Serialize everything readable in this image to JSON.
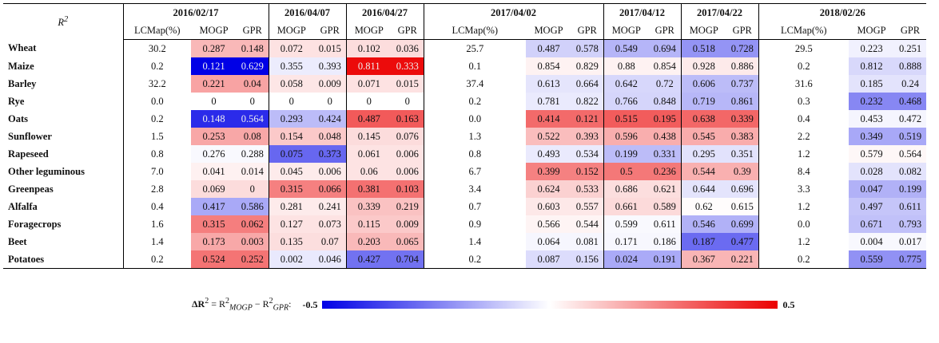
{
  "corner": {
    "base": "R",
    "sup": "2"
  },
  "groups": [
    {
      "date": "2016/02/17",
      "columns": [
        "LCMap(%)",
        "MOGP",
        "GPR"
      ]
    },
    {
      "date": "2016/04/07",
      "columns": [
        "MOGP",
        "GPR"
      ]
    },
    {
      "date": "2016/04/27",
      "columns": [
        "MOGP",
        "GPR"
      ]
    },
    {
      "date": "2017/04/02",
      "columns": [
        "LCMap(%)",
        "MOGP",
        "GPR"
      ]
    },
    {
      "date": "2017/04/12",
      "columns": [
        "MOGP",
        "GPR"
      ]
    },
    {
      "date": "2017/04/22",
      "columns": [
        "MOGP",
        "GPR"
      ]
    },
    {
      "date": "2018/02/26",
      "columns": [
        "LCMap(%)",
        "MOGP",
        "GPR"
      ]
    }
  ],
  "rows": [
    {
      "label": "Wheat",
      "cells": [
        "30.2",
        "0.287",
        "0.148",
        "0.072",
        "0.015",
        "0.102",
        "0.036",
        "25.7",
        "0.487",
        "0.578",
        "0.549",
        "0.694",
        "0.518",
        "0.728",
        "29.5",
        "0.223",
        "0.251"
      ]
    },
    {
      "label": "Maize",
      "cells": [
        "0.2",
        "0.121",
        "0.629",
        "0.355",
        "0.393",
        "0.811",
        "0.333",
        "0.1",
        "0.854",
        "0.829",
        "0.88",
        "0.854",
        "0.928",
        "0.886",
        "0.2",
        "0.812",
        "0.888"
      ]
    },
    {
      "label": "Barley",
      "cells": [
        "32.2",
        "0.221",
        "0.04",
        "0.058",
        "0.009",
        "0.071",
        "0.015",
        "37.4",
        "0.613",
        "0.664",
        "0.642",
        "0.72",
        "0.606",
        "0.737",
        "31.6",
        "0.185",
        "0.24"
      ]
    },
    {
      "label": "Rye",
      "cells": [
        "0.0",
        "0",
        "0",
        "0",
        "0",
        "0",
        "0",
        "0.2",
        "0.781",
        "0.822",
        "0.766",
        "0.848",
        "0.719",
        "0.861",
        "0.3",
        "0.232",
        "0.468"
      ]
    },
    {
      "label": "Oats",
      "cells": [
        "0.2",
        "0.148",
        "0.564",
        "0.293",
        "0.424",
        "0.487",
        "0.163",
        "0.0",
        "0.414",
        "0.121",
        "0.515",
        "0.195",
        "0.638",
        "0.339",
        "0.4",
        "0.453",
        "0.472"
      ]
    },
    {
      "label": "Sunflower",
      "cells": [
        "1.5",
        "0.253",
        "0.08",
        "0.154",
        "0.048",
        "0.145",
        "0.076",
        "1.3",
        "0.522",
        "0.393",
        "0.596",
        "0.438",
        "0.545",
        "0.383",
        "2.2",
        "0.349",
        "0.519"
      ]
    },
    {
      "label": "Rapeseed",
      "cells": [
        "0.8",
        "0.276",
        "0.288",
        "0.075",
        "0.373",
        "0.061",
        "0.006",
        "0.8",
        "0.493",
        "0.534",
        "0.199",
        "0.331",
        "0.295",
        "0.351",
        "1.2",
        "0.579",
        "0.564"
      ]
    },
    {
      "label": "Other leguminous",
      "cells": [
        "7.0",
        "0.041",
        "0.014",
        "0.045",
        "0.006",
        "0.06",
        "0.006",
        "6.7",
        "0.399",
        "0.152",
        "0.5",
        "0.236",
        "0.544",
        "0.39",
        "8.4",
        "0.028",
        "0.082"
      ]
    },
    {
      "label": "Greenpeas",
      "cells": [
        "2.8",
        "0.069",
        "0",
        "0.315",
        "0.066",
        "0.381",
        "0.103",
        "3.4",
        "0.624",
        "0.533",
        "0.686",
        "0.621",
        "0.644",
        "0.696",
        "3.3",
        "0.047",
        "0.199"
      ]
    },
    {
      "label": "Alfalfa",
      "cells": [
        "0.4",
        "0.417",
        "0.586",
        "0.281",
        "0.241",
        "0.339",
        "0.219",
        "0.7",
        "0.603",
        "0.557",
        "0.661",
        "0.589",
        "0.62",
        "0.615",
        "1.2",
        "0.497",
        "0.611"
      ]
    },
    {
      "label": "Foragecrops",
      "cells": [
        "1.6",
        "0.315",
        "0.062",
        "0.127",
        "0.073",
        "0.115",
        "0.009",
        "0.9",
        "0.566",
        "0.544",
        "0.599",
        "0.611",
        "0.546",
        "0.699",
        "0.0",
        "0.671",
        "0.793"
      ]
    },
    {
      "label": "Beet",
      "cells": [
        "1.4",
        "0.173",
        "0.003",
        "0.135",
        "0.07",
        "0.203",
        "0.065",
        "1.4",
        "0.064",
        "0.081",
        "0.171",
        "0.186",
        "0.187",
        "0.477",
        "1.2",
        "0.004",
        "0.017"
      ]
    },
    {
      "label": "Potatoes",
      "cells": [
        "0.2",
        "0.524",
        "0.252",
        "0.002",
        "0.046",
        "0.427",
        "0.704",
        "0.2",
        "0.087",
        "0.156",
        "0.024",
        "0.191",
        "0.367",
        "0.221",
        "0.2",
        "0.559",
        "0.775"
      ]
    }
  ],
  "colorbar": {
    "label": [
      "ΔR",
      "2",
      " = R",
      "2",
      "MOGP",
      " − R",
      "2",
      "GPR",
      ":"
    ],
    "min": -0.5,
    "max": 0.5,
    "low_color": "#0000e6",
    "high_color": "#eb0000"
  }
}
